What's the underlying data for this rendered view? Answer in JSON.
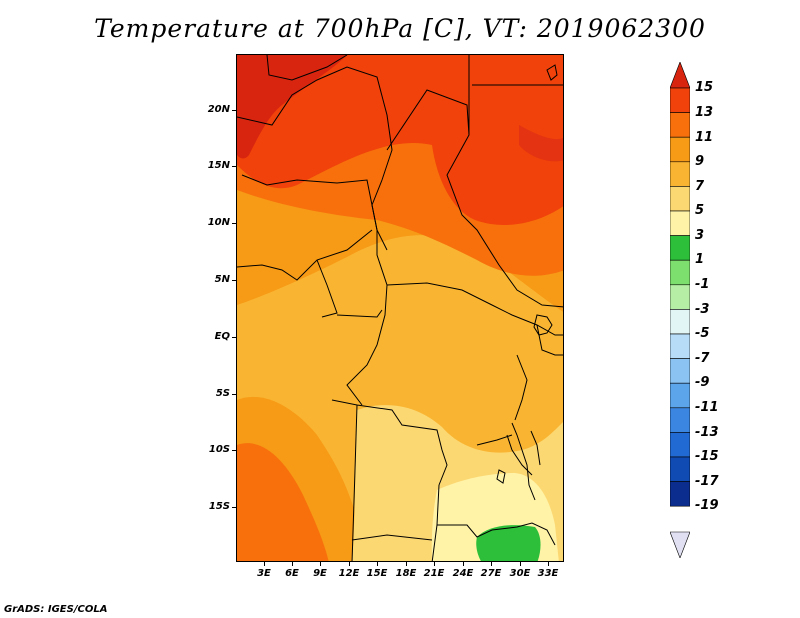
{
  "title": "Temperature at 700hPa [C], VT: 2019062300",
  "credit": "GrADS: IGES/COLA",
  "map": {
    "lat_labels": [
      "20N",
      "15N",
      "10N",
      "5N",
      "EQ",
      "5S",
      "10S",
      "15S"
    ],
    "lon_labels": [
      "3E",
      "6E",
      "9E",
      "12E",
      "15E",
      "18E",
      "21E",
      "24E",
      "27E",
      "30E",
      "33E"
    ]
  },
  "colorbar": {
    "labels": [
      "15",
      "13",
      "11",
      "9",
      "7",
      "5",
      "3",
      "1",
      "-1",
      "-3",
      "-5",
      "-7",
      "-9",
      "-11",
      "-13",
      "-15",
      "-17",
      "-19"
    ],
    "colors": {
      "above_15": "#d8250f",
      "13_15": "#f0420a",
      "11_13": "#f7700c",
      "9_11": "#f79a16",
      "7_9": "#f9b532",
      "5_7": "#fcd872",
      "3_5": "#fff3a8",
      "1_3": "#2ebf3a",
      "-1_1": "#7ddf6d",
      "-3_-1": "#b7eea6",
      "-5_-3": "#e2f6f6",
      "-7_-5": "#b6dcf7",
      "-9_-7": "#8bc4f2",
      "-11_-9": "#5ca5ea",
      "-13_-11": "#3a86e0",
      "-15_-13": "#226ad3",
      "-17_-15": "#104bb4",
      "-19_-17": "#0b2d8d",
      "below_-19": "#e0e0f2"
    }
  }
}
